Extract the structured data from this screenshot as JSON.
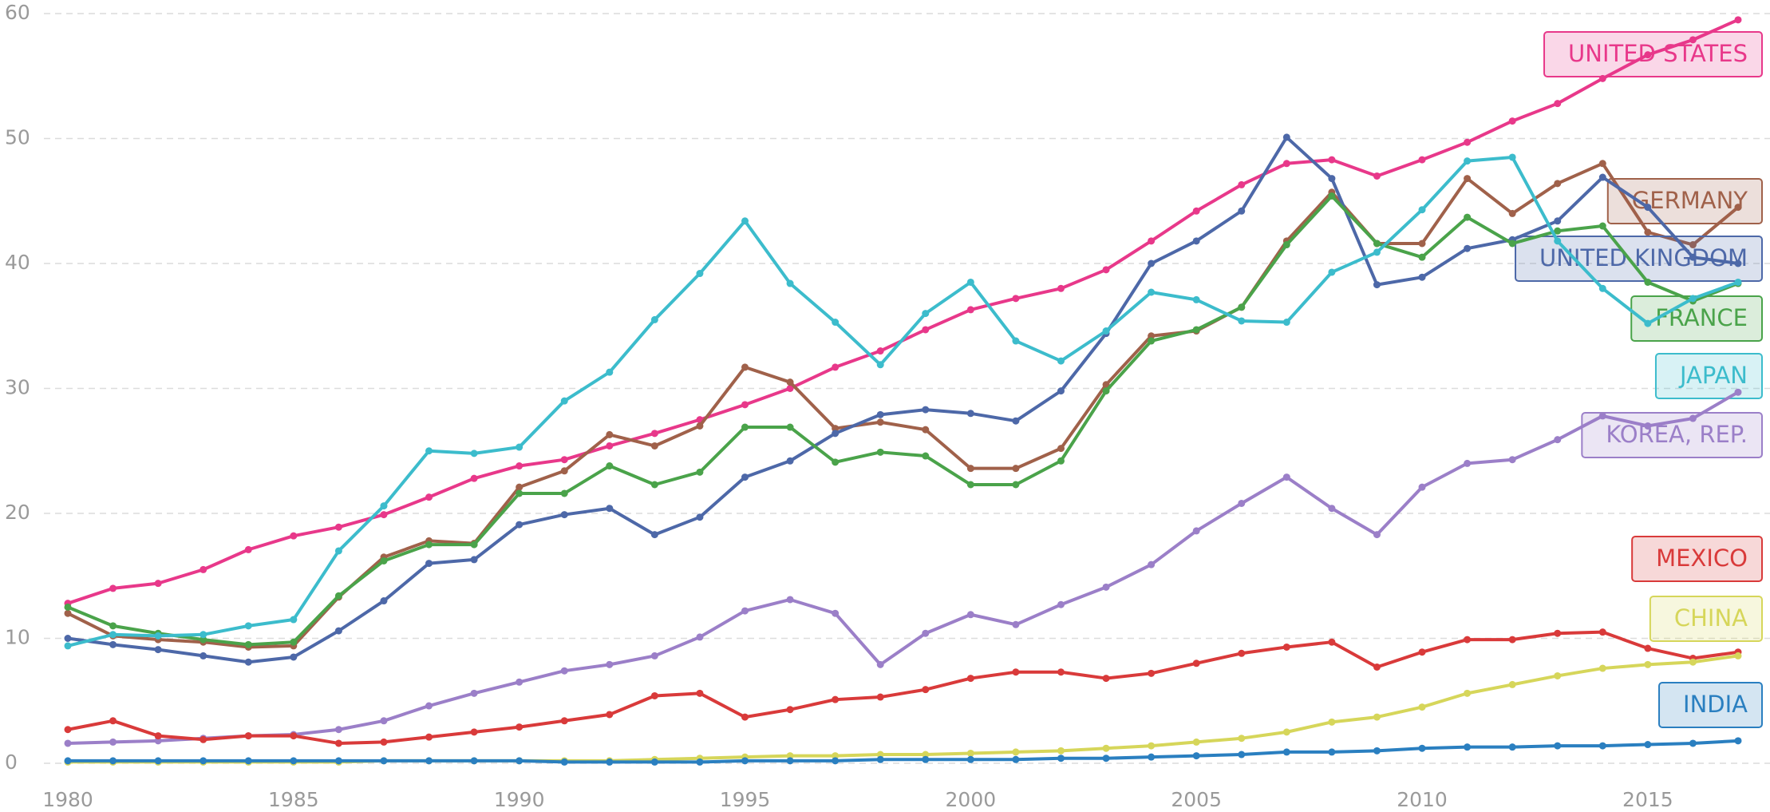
{
  "chart_data": {
    "type": "line",
    "x": [
      1980,
      1981,
      1982,
      1983,
      1984,
      1985,
      1986,
      1987,
      1988,
      1989,
      1990,
      1991,
      1992,
      1993,
      1994,
      1995,
      1996,
      1997,
      1998,
      1999,
      2000,
      2001,
      2002,
      2003,
      2004,
      2005,
      2006,
      2007,
      2008,
      2009,
      2010,
      2011,
      2012,
      2013,
      2014,
      2015,
      2016,
      2017
    ],
    "xlim": [
      1980,
      2017
    ],
    "xticks": [
      1980,
      1985,
      1990,
      1995,
      2000,
      2005,
      2010,
      2015
    ],
    "ylim": [
      0,
      60
    ],
    "yticks": [
      0,
      10,
      20,
      30,
      40,
      50,
      60
    ],
    "grid": true,
    "series": [
      {
        "name": "UNITED STATES",
        "color": "#e8388a",
        "values": [
          12.8,
          14,
          14.4,
          15.5,
          17.1,
          18.2,
          18.9,
          19.9,
          21.3,
          22.8,
          23.8,
          24.3,
          25.4,
          26.4,
          27.5,
          28.7,
          30,
          31.7,
          33,
          34.7,
          36.3,
          37.2,
          38,
          39.5,
          41.8,
          44.2,
          46.3,
          48,
          48.3,
          47,
          48.3,
          49.7,
          51.4,
          52.8,
          54.8,
          56.7,
          57.9,
          59.5
        ]
      },
      {
        "name": "GERMANY",
        "color": "#a0614a",
        "values": [
          12,
          10.2,
          9.9,
          9.7,
          9.3,
          9.4,
          13.3,
          16.5,
          17.8,
          17.6,
          22.1,
          23.4,
          26.3,
          25.4,
          27,
          31.7,
          30.5,
          26.8,
          27.3,
          26.7,
          23.6,
          23.6,
          25.2,
          30.3,
          34.2,
          34.6,
          36.5,
          41.8,
          45.7,
          41.6,
          41.6,
          46.8,
          44,
          46.4,
          48,
          42.5,
          41.5,
          44.5
        ]
      },
      {
        "name": "UNITED KINGDOM",
        "color": "#4d68a8",
        "values": [
          10,
          9.5,
          9.1,
          8.6,
          8.1,
          8.5,
          10.6,
          13,
          16,
          16.3,
          19.1,
          19.9,
          20.4,
          18.3,
          19.7,
          22.9,
          24.2,
          26.4,
          27.9,
          28.3,
          28,
          27.4,
          29.8,
          34.4,
          40,
          41.8,
          44.2,
          50.1,
          46.8,
          38.3,
          38.9,
          41.2,
          41.9,
          43.4,
          46.9,
          44.5,
          40.5,
          40
        ]
      },
      {
        "name": "FRANCE",
        "color": "#4aa34a",
        "values": [
          12.5,
          11,
          10.4,
          9.9,
          9.5,
          9.7,
          13.4,
          16.2,
          17.5,
          17.5,
          21.6,
          21.6,
          23.8,
          22.3,
          23.3,
          26.9,
          26.9,
          24.1,
          24.9,
          24.6,
          22.3,
          22.3,
          24.2,
          29.8,
          33.8,
          34.7,
          36.5,
          41.5,
          45.4,
          41.6,
          40.5,
          43.7,
          41.6,
          42.6,
          43,
          38.5,
          37,
          38.4
        ]
      },
      {
        "name": "JAPAN",
        "color": "#3cbccc",
        "values": [
          9.4,
          10.3,
          10.2,
          10.3,
          11,
          11.5,
          17,
          20.6,
          25,
          24.8,
          25.3,
          29,
          31.3,
          35.5,
          39.2,
          43.4,
          38.4,
          35.3,
          31.9,
          36,
          38.5,
          33.8,
          32.2,
          34.6,
          37.7,
          37.1,
          35.4,
          35.3,
          39.3,
          40.9,
          44.3,
          48.2,
          48.5,
          41.8,
          38,
          35.2,
          37.2,
          38.5
        ]
      },
      {
        "name": "KOREA, REP.",
        "color": "#9b7fc8",
        "values": [
          1.6,
          1.7,
          1.8,
          2,
          2.2,
          2.3,
          2.7,
          3.4,
          4.6,
          5.6,
          6.5,
          7.4,
          7.9,
          8.6,
          10.1,
          12.2,
          13.1,
          12,
          7.9,
          10.4,
          11.9,
          11.1,
          12.7,
          14.1,
          15.9,
          18.6,
          20.8,
          22.9,
          20.4,
          18.3,
          22.1,
          24,
          24.3,
          25.9,
          27.8,
          27,
          27.6,
          29.7
        ]
      },
      {
        "name": "MEXICO",
        "color": "#d93a3a",
        "values": [
          2.7,
          3.4,
          2.2,
          1.9,
          2.2,
          2.2,
          1.6,
          1.7,
          2.1,
          2.5,
          2.9,
          3.4,
          3.9,
          5.4,
          5.6,
          3.7,
          4.3,
          5.1,
          5.3,
          5.9,
          6.8,
          7.3,
          7.3,
          6.8,
          7.2,
          8,
          8.8,
          9.3,
          9.7,
          7.7,
          8.9,
          9.9,
          9.9,
          10.4,
          10.5,
          9.2,
          8.4,
          8.9
        ]
      },
      {
        "name": "CHINA",
        "color": "#d6d65a",
        "values": [
          0.1,
          0.1,
          0.1,
          0.1,
          0.1,
          0.1,
          0.1,
          0.2,
          0.2,
          0.2,
          0.2,
          0.2,
          0.2,
          0.3,
          0.4,
          0.5,
          0.6,
          0.6,
          0.7,
          0.7,
          0.8,
          0.9,
          1,
          1.2,
          1.4,
          1.7,
          2,
          2.5,
          3.3,
          3.7,
          4.5,
          5.6,
          6.3,
          7,
          7.6,
          7.9,
          8.1,
          8.6
        ]
      },
      {
        "name": "INDIA",
        "color": "#2a7fc0",
        "values": [
          0.2,
          0.2,
          0.2,
          0.2,
          0.2,
          0.2,
          0.2,
          0.2,
          0.2,
          0.2,
          0.2,
          0.1,
          0.1,
          0.1,
          0.1,
          0.2,
          0.2,
          0.2,
          0.3,
          0.3,
          0.3,
          0.3,
          0.4,
          0.4,
          0.5,
          0.6,
          0.7,
          0.9,
          0.9,
          1,
          1.2,
          1.3,
          1.3,
          1.4,
          1.4,
          1.5,
          1.6,
          1.8
        ]
      }
    ]
  }
}
